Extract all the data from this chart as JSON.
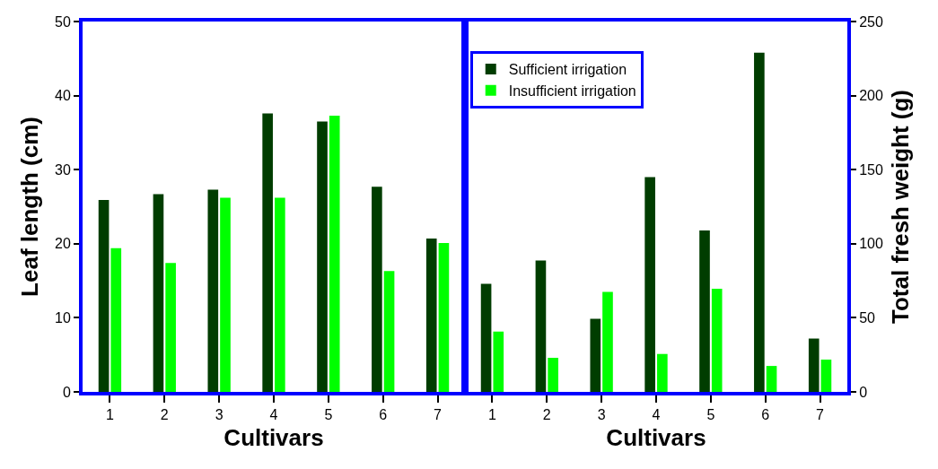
{
  "chart_data": [
    {
      "type": "bar",
      "xlabel": "Cultivars",
      "ylabel": "Leaf length (cm)",
      "categories": [
        "1",
        "2",
        "3",
        "4",
        "5",
        "6",
        "7"
      ],
      "ylim": [
        0,
        50
      ],
      "yticks": [
        0,
        10,
        20,
        30,
        40,
        50
      ],
      "legend": "top right",
      "grid": false,
      "series": [
        {
          "name": "Sufficient irrigation",
          "color": "#003d00",
          "values": [
            25.9,
            26.7,
            27.3,
            37.6,
            36.5,
            27.7,
            20.7
          ]
        },
        {
          "name": "Insufficient irrigation",
          "color": "#00ff00",
          "values": [
            19.4,
            17.4,
            26.2,
            26.2,
            37.3,
            16.3,
            20.1
          ]
        }
      ]
    },
    {
      "type": "bar",
      "xlabel": "Cultivars",
      "y2label": "Total fresh weight (g)",
      "categories": [
        "1",
        "2",
        "3",
        "4",
        "5",
        "6",
        "7"
      ],
      "y2lim": [
        0,
        250
      ],
      "y2ticks": [
        0,
        50,
        100,
        150,
        200,
        250
      ],
      "grid": false,
      "series": [
        {
          "name": "Sufficient irrigation",
          "color": "#003d00",
          "axis": "y2",
          "values": [
            73,
            88.7,
            49.4,
            145,
            109,
            229,
            36
          ]
        },
        {
          "name": "Insufficient irrigation",
          "color": "#00ff00",
          "axis": "y2",
          "values": [
            40.7,
            23,
            67.5,
            25.6,
            69.6,
            17.5,
            21.8
          ]
        }
      ]
    }
  ]
}
